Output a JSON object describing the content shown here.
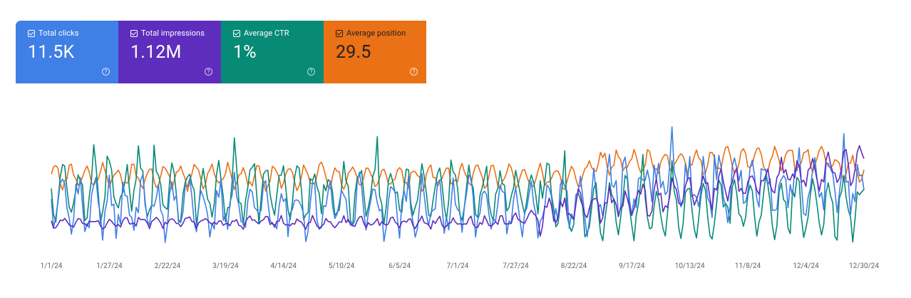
{
  "metrics": [
    {
      "label": "Total clicks",
      "value": "11.5K",
      "color": "#3f7fe6",
      "checked": true
    },
    {
      "label": "Total impressions",
      "value": "1.12M",
      "color": "#5e2dbd",
      "checked": true
    },
    {
      "label": "Average CTR",
      "value": "1%",
      "color": "#078a76",
      "checked": true
    },
    {
      "label": "Average position",
      "value": "29.5",
      "color": "#ea7115",
      "checked": true
    }
  ],
  "help_icon_glyph": "?",
  "chart_data": {
    "type": "line",
    "x_tick_labels": [
      "1/1/24",
      "1/27/24",
      "2/22/24",
      "3/19/24",
      "4/14/24",
      "5/10/24",
      "6/5/24",
      "7/1/24",
      "7/27/24",
      "8/22/24",
      "9/17/24",
      "10/13/24",
      "11/8/24",
      "12/4/24",
      "12/30/24"
    ],
    "x_range": [
      "1/1/24",
      "12/30/24"
    ],
    "y_axis_visible": false,
    "grid": false,
    "series": [
      {
        "metric": "Average position",
        "color": "#ea7115"
      },
      {
        "metric": "Average CTR",
        "color": "#078a76"
      },
      {
        "metric": "Total clicks",
        "color": "#3f7fe6"
      },
      {
        "metric": "Total impressions",
        "color": "#5e2dbd"
      }
    ]
  }
}
